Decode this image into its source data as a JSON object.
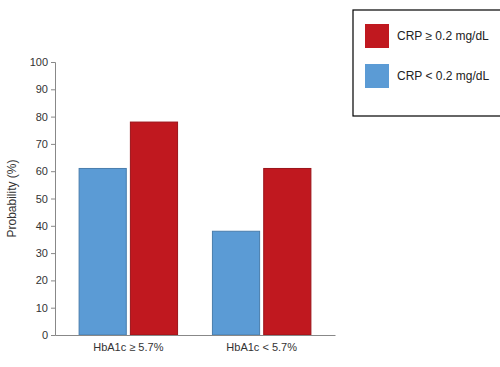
{
  "chart_data": {
    "type": "bar",
    "categories": [
      "HbA1c ≥ 5.7%",
      "HbA1c < 5.7%"
    ],
    "series": [
      {
        "name": "CRP ≥ 0.2 mg/dL",
        "color": "#c0181f",
        "values": [
          78,
          61
        ]
      },
      {
        "name": "CRP < 0.2 mg/dL",
        "color": "#5b9bd5",
        "values": [
          61,
          38
        ]
      }
    ],
    "y_label": "Probability (%)",
    "ylim": [
      0,
      100
    ],
    "yticks": [
      0,
      10,
      20,
      30,
      40,
      50,
      60,
      70,
      80,
      90,
      100
    ],
    "grid": false,
    "legend": "top-right"
  }
}
